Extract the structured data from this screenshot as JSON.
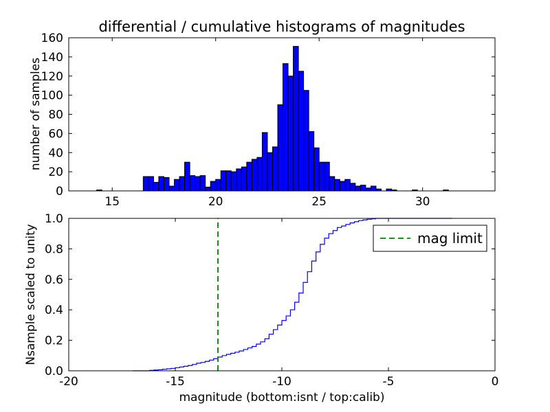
{
  "figure": {
    "background": "#ffffff",
    "frame_color": "#000000"
  },
  "chart_data": [
    {
      "type": "bar",
      "name": "differential-histogram",
      "title": "differential / cumulative histograms of magnitudes",
      "ylabel": "number of samples",
      "xlim": [
        12.9,
        33.5
      ],
      "ylim": [
        0,
        160
      ],
      "xticks": [
        15,
        20,
        25,
        30
      ],
      "xtick_labels": [
        "15",
        "20",
        "25",
        "30"
      ],
      "yticks": [
        0,
        20,
        40,
        60,
        80,
        100,
        120,
        140,
        160
      ],
      "ytick_labels": [
        "0",
        "20",
        "40",
        "60",
        "80",
        "100",
        "120",
        "140",
        "160"
      ],
      "grid": false,
      "bar_color": "#0000ff",
      "bar_edge_color": "#000000",
      "bin_width": 0.25,
      "bins": [
        [
          14.25,
          1
        ],
        [
          16.5,
          15
        ],
        [
          16.75,
          15
        ],
        [
          17.0,
          9
        ],
        [
          17.25,
          15
        ],
        [
          17.5,
          14
        ],
        [
          17.75,
          5
        ],
        [
          18.0,
          12
        ],
        [
          18.25,
          15
        ],
        [
          18.5,
          30
        ],
        [
          18.75,
          16
        ],
        [
          19.0,
          15
        ],
        [
          19.25,
          16
        ],
        [
          19.5,
          4
        ],
        [
          19.75,
          10
        ],
        [
          20.0,
          12
        ],
        [
          20.25,
          21
        ],
        [
          20.5,
          21
        ],
        [
          20.75,
          20
        ],
        [
          21.0,
          23
        ],
        [
          21.25,
          25
        ],
        [
          21.5,
          30
        ],
        [
          21.75,
          33
        ],
        [
          22.0,
          35
        ],
        [
          22.25,
          61
        ],
        [
          22.5,
          40
        ],
        [
          22.75,
          46
        ],
        [
          23.0,
          90
        ],
        [
          23.25,
          133
        ],
        [
          23.5,
          120
        ],
        [
          23.75,
          151
        ],
        [
          24.0,
          125
        ],
        [
          24.25,
          105
        ],
        [
          24.5,
          62
        ],
        [
          24.75,
          45
        ],
        [
          25.0,
          30
        ],
        [
          25.25,
          30
        ],
        [
          25.5,
          15
        ],
        [
          25.75,
          12
        ],
        [
          26.0,
          10
        ],
        [
          26.25,
          12
        ],
        [
          26.5,
          8
        ],
        [
          26.75,
          5
        ],
        [
          27.0,
          6
        ],
        [
          27.25,
          3
        ],
        [
          27.5,
          5
        ],
        [
          27.75,
          2
        ],
        [
          28.25,
          2
        ],
        [
          28.5,
          1
        ],
        [
          29.5,
          1
        ],
        [
          31.0,
          1
        ]
      ]
    },
    {
      "type": "line",
      "name": "cumulative-histogram",
      "ylabel": "Nsample scaled to unity",
      "xlabel": "magnitude (bottom:isnt / top:calib)",
      "xlim": [
        -20,
        0
      ],
      "ylim": [
        0,
        1
      ],
      "xticks": [
        -20,
        -15,
        -10,
        -5,
        0
      ],
      "xtick_labels": [
        "-20",
        "-15",
        "-10",
        "-5",
        "0"
      ],
      "yticks": [
        0.0,
        0.2,
        0.4,
        0.6,
        0.8,
        1.0
      ],
      "ytick_labels": [
        "0.0",
        "0.2",
        "0.4",
        "0.6",
        "0.8",
        "1.0"
      ],
      "grid": false,
      "step": true,
      "line_color": "#0000ff",
      "points": [
        [
          -17.0,
          0.0
        ],
        [
          -16.2,
          0.003
        ],
        [
          -16.0,
          0.005
        ],
        [
          -15.8,
          0.007
        ],
        [
          -15.6,
          0.01
        ],
        [
          -15.4,
          0.013
        ],
        [
          -15.2,
          0.016
        ],
        [
          -15.0,
          0.02
        ],
        [
          -14.8,
          0.025
        ],
        [
          -14.6,
          0.03
        ],
        [
          -14.4,
          0.035
        ],
        [
          -14.2,
          0.042
        ],
        [
          -14.0,
          0.05
        ],
        [
          -13.8,
          0.055
        ],
        [
          -13.6,
          0.062
        ],
        [
          -13.4,
          0.07
        ],
        [
          -13.2,
          0.08
        ],
        [
          -13.0,
          0.09
        ],
        [
          -12.8,
          0.1
        ],
        [
          -12.6,
          0.108
        ],
        [
          -12.4,
          0.115
        ],
        [
          -12.2,
          0.122
        ],
        [
          -12.0,
          0.13
        ],
        [
          -11.8,
          0.14
        ],
        [
          -11.6,
          0.15
        ],
        [
          -11.4,
          0.16
        ],
        [
          -11.2,
          0.175
        ],
        [
          -11.0,
          0.19
        ],
        [
          -10.8,
          0.21
        ],
        [
          -10.6,
          0.24
        ],
        [
          -10.4,
          0.27
        ],
        [
          -10.2,
          0.3
        ],
        [
          -10.0,
          0.33
        ],
        [
          -9.8,
          0.36
        ],
        [
          -9.6,
          0.4
        ],
        [
          -9.4,
          0.45
        ],
        [
          -9.2,
          0.51
        ],
        [
          -9.0,
          0.58
        ],
        [
          -8.8,
          0.65
        ],
        [
          -8.6,
          0.72
        ],
        [
          -8.4,
          0.78
        ],
        [
          -8.2,
          0.83
        ],
        [
          -8.0,
          0.87
        ],
        [
          -7.8,
          0.9
        ],
        [
          -7.6,
          0.92
        ],
        [
          -7.4,
          0.94
        ],
        [
          -7.2,
          0.95
        ],
        [
          -7.0,
          0.96
        ],
        [
          -6.8,
          0.97
        ],
        [
          -6.6,
          0.978
        ],
        [
          -6.4,
          0.985
        ],
        [
          -6.2,
          0.99
        ],
        [
          -6.0,
          0.994
        ],
        [
          -5.8,
          0.997
        ],
        [
          -5.6,
          1.0
        ],
        [
          -2.0,
          1.0
        ]
      ],
      "mag_limit_line": {
        "x": -13,
        "color": "#008000",
        "style": "dashed"
      },
      "legend": {
        "label": "mag limit",
        "position": "upper right"
      }
    }
  ]
}
